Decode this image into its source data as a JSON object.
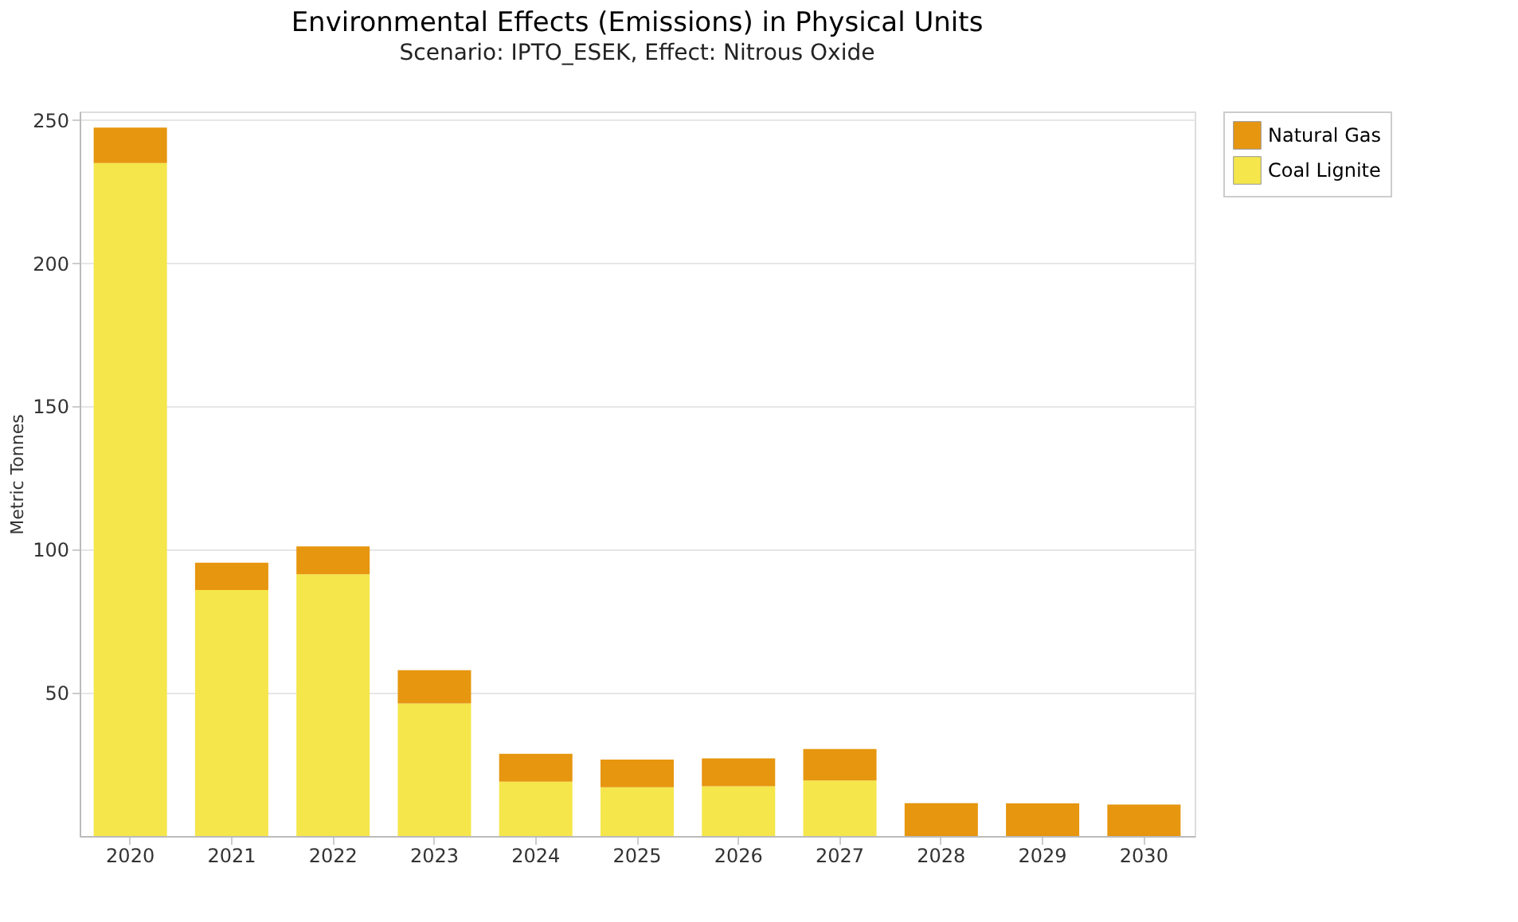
{
  "chart_data": {
    "type": "bar",
    "title": "Environmental Effects (Emissions) in Physical Units",
    "subtitle": "Scenario: IPTO_ESEK, Effect: Nitrous Oxide",
    "ylabel": "Metric Tonnes",
    "categories": [
      "2020",
      "2021",
      "2022",
      "2023",
      "2024",
      "2025",
      "2026",
      "2027",
      "2028",
      "2029",
      "2030"
    ],
    "stacked": true,
    "series": [
      {
        "name": "Coal Lignite",
        "color": "#f5e64b",
        "values": [
          235,
          85.9,
          91.4,
          46.3,
          19.0,
          17.0,
          17.4,
          19.4,
          0,
          0,
          0
        ]
      },
      {
        "name": "Natural Gas",
        "color": "#e6960f",
        "values": [
          12.4,
          9.5,
          9.7,
          11.6,
          9.7,
          9.7,
          9.7,
          11.0,
          11.5,
          11.4,
          11.0
        ]
      }
    ],
    "ylim": [
      0,
      253
    ],
    "yticks": [
      50,
      100,
      150,
      200,
      250
    ],
    "grid": "y",
    "legend": "top right"
  }
}
